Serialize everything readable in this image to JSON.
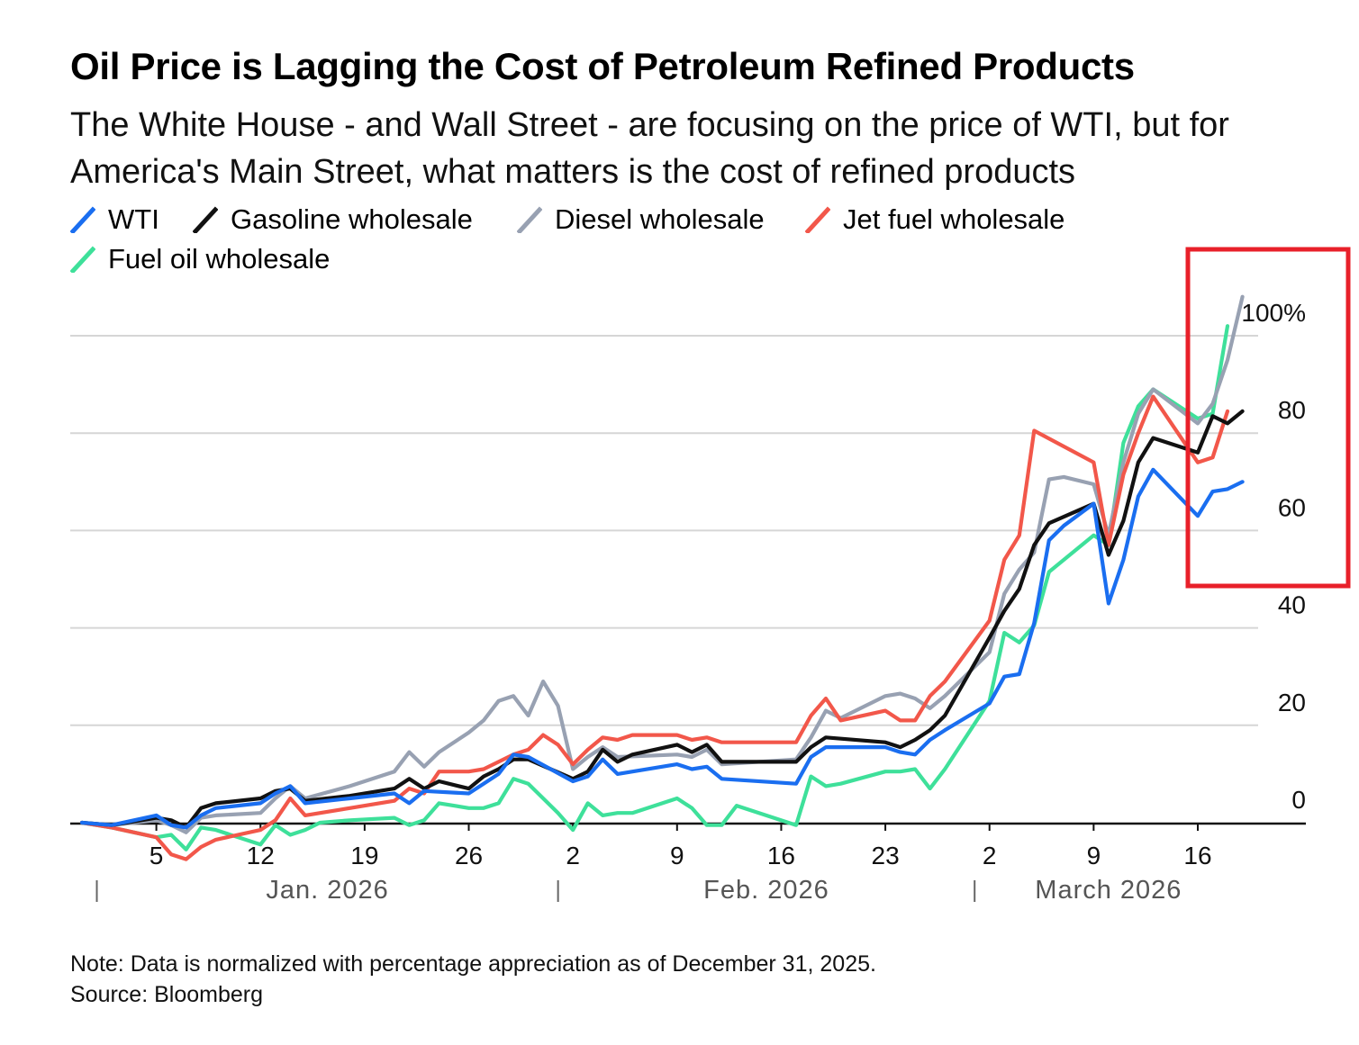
{
  "title": "Oil Price is Lagging the Cost of Petroleum Refined Products",
  "subtitle": "The White House - and Wall Street - are focusing on the price of WTI, but for America's Main Street, what matters is the cost of refined products",
  "note": "Note: Data is normalized with percentage appreciation as of December 31, 2025.",
  "source": "Source: Bloomberg",
  "highlight_color": "#e8202a",
  "chart_data": {
    "type": "line",
    "title": "Oil Price is Lagging the Cost of Petroleum Refined Products",
    "xlabel": "",
    "ylabel": "",
    "x_unit": "days since Dec 31, 2025",
    "xlim": [
      0,
      81
    ],
    "ylim": [
      -5,
      110
    ],
    "grid": true,
    "y_ticks": [
      0,
      20,
      40,
      60,
      80,
      100
    ],
    "y_tick_labels": [
      "0",
      "20",
      "40",
      "60",
      "80",
      "100%"
    ],
    "x_ticks": [
      {
        "x": 5,
        "label": "5"
      },
      {
        "x": 12,
        "label": "12"
      },
      {
        "x": 19,
        "label": "19"
      },
      {
        "x": 26,
        "label": "26"
      },
      {
        "x": 33,
        "label": "2"
      },
      {
        "x": 40,
        "label": "9"
      },
      {
        "x": 47,
        "label": "16"
      },
      {
        "x": 54,
        "label": "23"
      },
      {
        "x": 61,
        "label": "2"
      },
      {
        "x": 68,
        "label": "9"
      },
      {
        "x": 75,
        "label": "16"
      }
    ],
    "month_labels": [
      {
        "label": "Jan. 2026",
        "x": 16.5,
        "sep": 1
      },
      {
        "label": "Feb. 2026",
        "x": 46,
        "sep": 32
      },
      {
        "label": "March 2026",
        "x": 69,
        "sep": 60
      }
    ],
    "series": [
      {
        "name": "WTI",
        "color": "#1a6ef0",
        "points": [
          [
            0,
            0
          ],
          [
            2,
            -0.5
          ],
          [
            5,
            1.5
          ],
          [
            6,
            -0.5
          ],
          [
            7,
            -1
          ],
          [
            8,
            1.5
          ],
          [
            9,
            3
          ],
          [
            12,
            4
          ],
          [
            13,
            6
          ],
          [
            14,
            7.5
          ],
          [
            15,
            4
          ],
          [
            18,
            5
          ],
          [
            21,
            6
          ],
          [
            22,
            4
          ],
          [
            23,
            6.5
          ],
          [
            26,
            6
          ],
          [
            27,
            8
          ],
          [
            28,
            10
          ],
          [
            29,
            14
          ],
          [
            30,
            13.5
          ],
          [
            33,
            8.5
          ],
          [
            34,
            9.5
          ],
          [
            35,
            13
          ],
          [
            36,
            10
          ],
          [
            40,
            12
          ],
          [
            41,
            11
          ],
          [
            42,
            11.5
          ],
          [
            43,
            9
          ],
          [
            48,
            8
          ],
          [
            49,
            13.5
          ],
          [
            50,
            15.5
          ],
          [
            54,
            15.5
          ],
          [
            55,
            14.5
          ],
          [
            56,
            14
          ],
          [
            57,
            17
          ],
          [
            58,
            19
          ],
          [
            61,
            24.5
          ],
          [
            62,
            30
          ],
          [
            63,
            30.5
          ],
          [
            64,
            41
          ],
          [
            65,
            58
          ],
          [
            66,
            61
          ],
          [
            68,
            65.5
          ],
          [
            69,
            45
          ],
          [
            70,
            54
          ],
          [
            71,
            67
          ],
          [
            72,
            72.5
          ],
          [
            75,
            63
          ],
          [
            76,
            68
          ],
          [
            77,
            68.5
          ],
          [
            78,
            70
          ]
        ]
      },
      {
        "name": "Gasoline wholesale",
        "color": "#111111",
        "points": [
          [
            0,
            0
          ],
          [
            2,
            -0.5
          ],
          [
            5,
            1
          ],
          [
            6,
            0.5
          ],
          [
            7,
            -1
          ],
          [
            8,
            3
          ],
          [
            9,
            4
          ],
          [
            12,
            5
          ],
          [
            13,
            6.5
          ],
          [
            14,
            7
          ],
          [
            15,
            4.5
          ],
          [
            18,
            5.5
          ],
          [
            21,
            7
          ],
          [
            22,
            9
          ],
          [
            23,
            7
          ],
          [
            24,
            8.5
          ],
          [
            26,
            7
          ],
          [
            27,
            9.5
          ],
          [
            28,
            11
          ],
          [
            29,
            13
          ],
          [
            30,
            13
          ],
          [
            33,
            9
          ],
          [
            34,
            10.5
          ],
          [
            35,
            15
          ],
          [
            36,
            12.5
          ],
          [
            37,
            14
          ],
          [
            40,
            16
          ],
          [
            41,
            14.5
          ],
          [
            42,
            16
          ],
          [
            43,
            12.5
          ],
          [
            48,
            12.5
          ],
          [
            49,
            15.5
          ],
          [
            50,
            17.5
          ],
          [
            54,
            16.5
          ],
          [
            55,
            15.5
          ],
          [
            56,
            17
          ],
          [
            57,
            19
          ],
          [
            58,
            22
          ],
          [
            61,
            38
          ],
          [
            62,
            43.5
          ],
          [
            63,
            48
          ],
          [
            64,
            57
          ],
          [
            65,
            61.5
          ],
          [
            68,
            65.5
          ],
          [
            69,
            55
          ],
          [
            70,
            62
          ],
          [
            71,
            74
          ],
          [
            72,
            79
          ],
          [
            75,
            76
          ],
          [
            76,
            83.5
          ],
          [
            77,
            82
          ],
          [
            78,
            84.5
          ]
        ]
      },
      {
        "name": "Diesel wholesale",
        "color": "#98a1b2",
        "points": [
          [
            0,
            0
          ],
          [
            2,
            -0.5
          ],
          [
            5,
            0.5
          ],
          [
            6,
            -0.5
          ],
          [
            7,
            -2
          ],
          [
            8,
            1
          ],
          [
            9,
            1.5
          ],
          [
            12,
            2
          ],
          [
            13,
            5
          ],
          [
            14,
            7.5
          ],
          [
            15,
            5
          ],
          [
            18,
            7.5
          ],
          [
            21,
            10.5
          ],
          [
            22,
            14.5
          ],
          [
            23,
            11.5
          ],
          [
            24,
            14.5
          ],
          [
            26,
            18.5
          ],
          [
            27,
            21
          ],
          [
            28,
            25
          ],
          [
            29,
            26
          ],
          [
            30,
            22
          ],
          [
            31,
            29
          ],
          [
            32,
            24
          ],
          [
            33,
            11
          ],
          [
            34,
            13.5
          ],
          [
            35,
            15.5
          ],
          [
            36,
            13.5
          ],
          [
            40,
            14
          ],
          [
            41,
            13.5
          ],
          [
            42,
            15
          ],
          [
            43,
            12
          ],
          [
            48,
            13
          ],
          [
            49,
            17.5
          ],
          [
            50,
            23
          ],
          [
            51,
            21.5
          ],
          [
            54,
            26
          ],
          [
            55,
            26.5
          ],
          [
            56,
            25.5
          ],
          [
            57,
            23.5
          ],
          [
            58,
            26
          ],
          [
            61,
            35
          ],
          [
            62,
            47
          ],
          [
            63,
            52
          ],
          [
            64,
            55.5
          ],
          [
            65,
            70.5
          ],
          [
            66,
            71
          ],
          [
            68,
            69.5
          ],
          [
            69,
            59
          ],
          [
            70,
            74
          ],
          [
            71,
            84
          ],
          [
            72,
            89
          ],
          [
            75,
            82
          ],
          [
            76,
            86
          ],
          [
            77,
            95
          ],
          [
            78,
            108
          ]
        ]
      },
      {
        "name": "Jet fuel wholesale",
        "color": "#f2574a",
        "points": [
          [
            0,
            0
          ],
          [
            2,
            -1
          ],
          [
            5,
            -3
          ],
          [
            6,
            -6.5
          ],
          [
            7,
            -7.5
          ],
          [
            8,
            -5
          ],
          [
            9,
            -3.5
          ],
          [
            12,
            -1.5
          ],
          [
            13,
            0.5
          ],
          [
            14,
            5
          ],
          [
            15,
            1.5
          ],
          [
            18,
            3
          ],
          [
            21,
            4.5
          ],
          [
            22,
            7
          ],
          [
            23,
            6
          ],
          [
            24,
            10.5
          ],
          [
            26,
            10.5
          ],
          [
            27,
            11
          ],
          [
            28,
            12.5
          ],
          [
            29,
            14
          ],
          [
            30,
            15
          ],
          [
            31,
            18
          ],
          [
            32,
            16
          ],
          [
            33,
            12
          ],
          [
            34,
            15
          ],
          [
            35,
            17.5
          ],
          [
            36,
            17
          ],
          [
            37,
            18
          ],
          [
            40,
            18
          ],
          [
            41,
            17
          ],
          [
            42,
            17.5
          ],
          [
            43,
            16.5
          ],
          [
            48,
            16.5
          ],
          [
            49,
            22
          ],
          [
            50,
            25.5
          ],
          [
            51,
            21
          ],
          [
            54,
            23
          ],
          [
            55,
            21
          ],
          [
            56,
            21
          ],
          [
            57,
            26
          ],
          [
            58,
            29
          ],
          [
            61,
            41.5
          ],
          [
            62,
            54
          ],
          [
            63,
            59
          ],
          [
            64,
            80.5
          ],
          [
            68,
            74
          ],
          [
            69,
            57
          ],
          [
            70,
            71.5
          ],
          [
            71,
            80
          ],
          [
            72,
            87.5
          ],
          [
            75,
            74
          ],
          [
            76,
            75
          ],
          [
            77,
            84.5
          ]
        ]
      },
      {
        "name": "Fuel oil wholesale",
        "color": "#3ee09a",
        "points": [
          [
            0,
            0
          ],
          [
            2,
            -1
          ],
          [
            5,
            -3
          ],
          [
            6,
            -2.5
          ],
          [
            7,
            -5.5
          ],
          [
            8,
            -1
          ],
          [
            9,
            -1.5
          ],
          [
            12,
            -4.5
          ],
          [
            13,
            -0.5
          ],
          [
            14,
            -2.5
          ],
          [
            15,
            -1.5
          ],
          [
            16,
            0
          ],
          [
            18,
            0.5
          ],
          [
            21,
            1
          ],
          [
            22,
            -0.5
          ],
          [
            23,
            0.5
          ],
          [
            24,
            4
          ],
          [
            26,
            3
          ],
          [
            27,
            3
          ],
          [
            28,
            4
          ],
          [
            29,
            9
          ],
          [
            30,
            8
          ],
          [
            31,
            5
          ],
          [
            32,
            2
          ],
          [
            33,
            -1.5
          ],
          [
            34,
            4
          ],
          [
            35,
            1.5
          ],
          [
            36,
            2
          ],
          [
            37,
            2
          ],
          [
            40,
            5
          ],
          [
            41,
            3
          ],
          [
            42,
            -0.5
          ],
          [
            43,
            -0.5
          ],
          [
            44,
            3.5
          ],
          [
            48,
            -0.5
          ],
          [
            49,
            9.5
          ],
          [
            50,
            7.5
          ],
          [
            51,
            8
          ],
          [
            54,
            10.5
          ],
          [
            55,
            10.5
          ],
          [
            56,
            11
          ],
          [
            57,
            7
          ],
          [
            58,
            11
          ],
          [
            61,
            25
          ],
          [
            62,
            39
          ],
          [
            63,
            37
          ],
          [
            64,
            40.5
          ],
          [
            65,
            51.5
          ],
          [
            68,
            59
          ],
          [
            69,
            57
          ],
          [
            70,
            78
          ],
          [
            71,
            85.5
          ],
          [
            72,
            89
          ],
          [
            75,
            83
          ],
          [
            76,
            84
          ],
          [
            77,
            102
          ]
        ]
      }
    ]
  }
}
